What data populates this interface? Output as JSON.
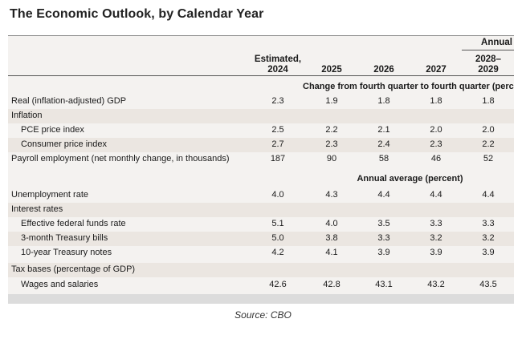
{
  "title": "The Economic Outlook, by Calendar Year",
  "header": {
    "annual_label": "Annual",
    "col_est_line1": "Estimated,",
    "col_est_line2": "2024",
    "col_2025": "2025",
    "col_2026": "2026",
    "col_2027": "2027",
    "col_2028_line1": "2028–",
    "col_2028_line2": "2029"
  },
  "section1": "Change from fourth quarter to fourth quarter (percent)",
  "section2": "Annual average (percent)",
  "rows": [
    {
      "label": "Real (inflation-adjusted) GDP",
      "values": [
        "2.3",
        "1.9",
        "1.8",
        "1.8",
        "1.8"
      ]
    },
    {
      "label": "Inflation",
      "values": [
        "",
        "",
        "",
        "",
        ""
      ]
    },
    {
      "label": "PCE price index",
      "values": [
        "2.5",
        "2.2",
        "2.1",
        "2.0",
        "2.0"
      ]
    },
    {
      "label": "Consumer price index",
      "values": [
        "2.7",
        "2.3",
        "2.4",
        "2.3",
        "2.2"
      ]
    },
    {
      "label": "Payroll employment (net monthly change, in thousands)",
      "values": [
        "187",
        "90",
        "58",
        "46",
        "52"
      ]
    },
    {
      "label": "Unemployment rate",
      "values": [
        "4.0",
        "4.3",
        "4.4",
        "4.4",
        "4.4"
      ]
    },
    {
      "label": "Interest rates",
      "values": [
        "",
        "",
        "",
        "",
        ""
      ]
    },
    {
      "label": "Effective federal funds rate",
      "values": [
        "5.1",
        "4.0",
        "3.5",
        "3.3",
        "3.3"
      ]
    },
    {
      "label": "3-month Treasury bills",
      "values": [
        "5.0",
        "3.8",
        "3.3",
        "3.2",
        "3.2"
      ]
    },
    {
      "label": "10-year Treasury notes",
      "values": [
        "4.2",
        "4.1",
        "3.9",
        "3.9",
        "3.9"
      ]
    },
    {
      "label": "Tax bases (percentage of GDP)",
      "values": [
        "",
        "",
        "",
        "",
        ""
      ]
    },
    {
      "label": "Wages and salaries",
      "values": [
        "42.6",
        "42.8",
        "43.1",
        "43.2",
        "43.5"
      ]
    }
  ],
  "source": "Source: CBO"
}
